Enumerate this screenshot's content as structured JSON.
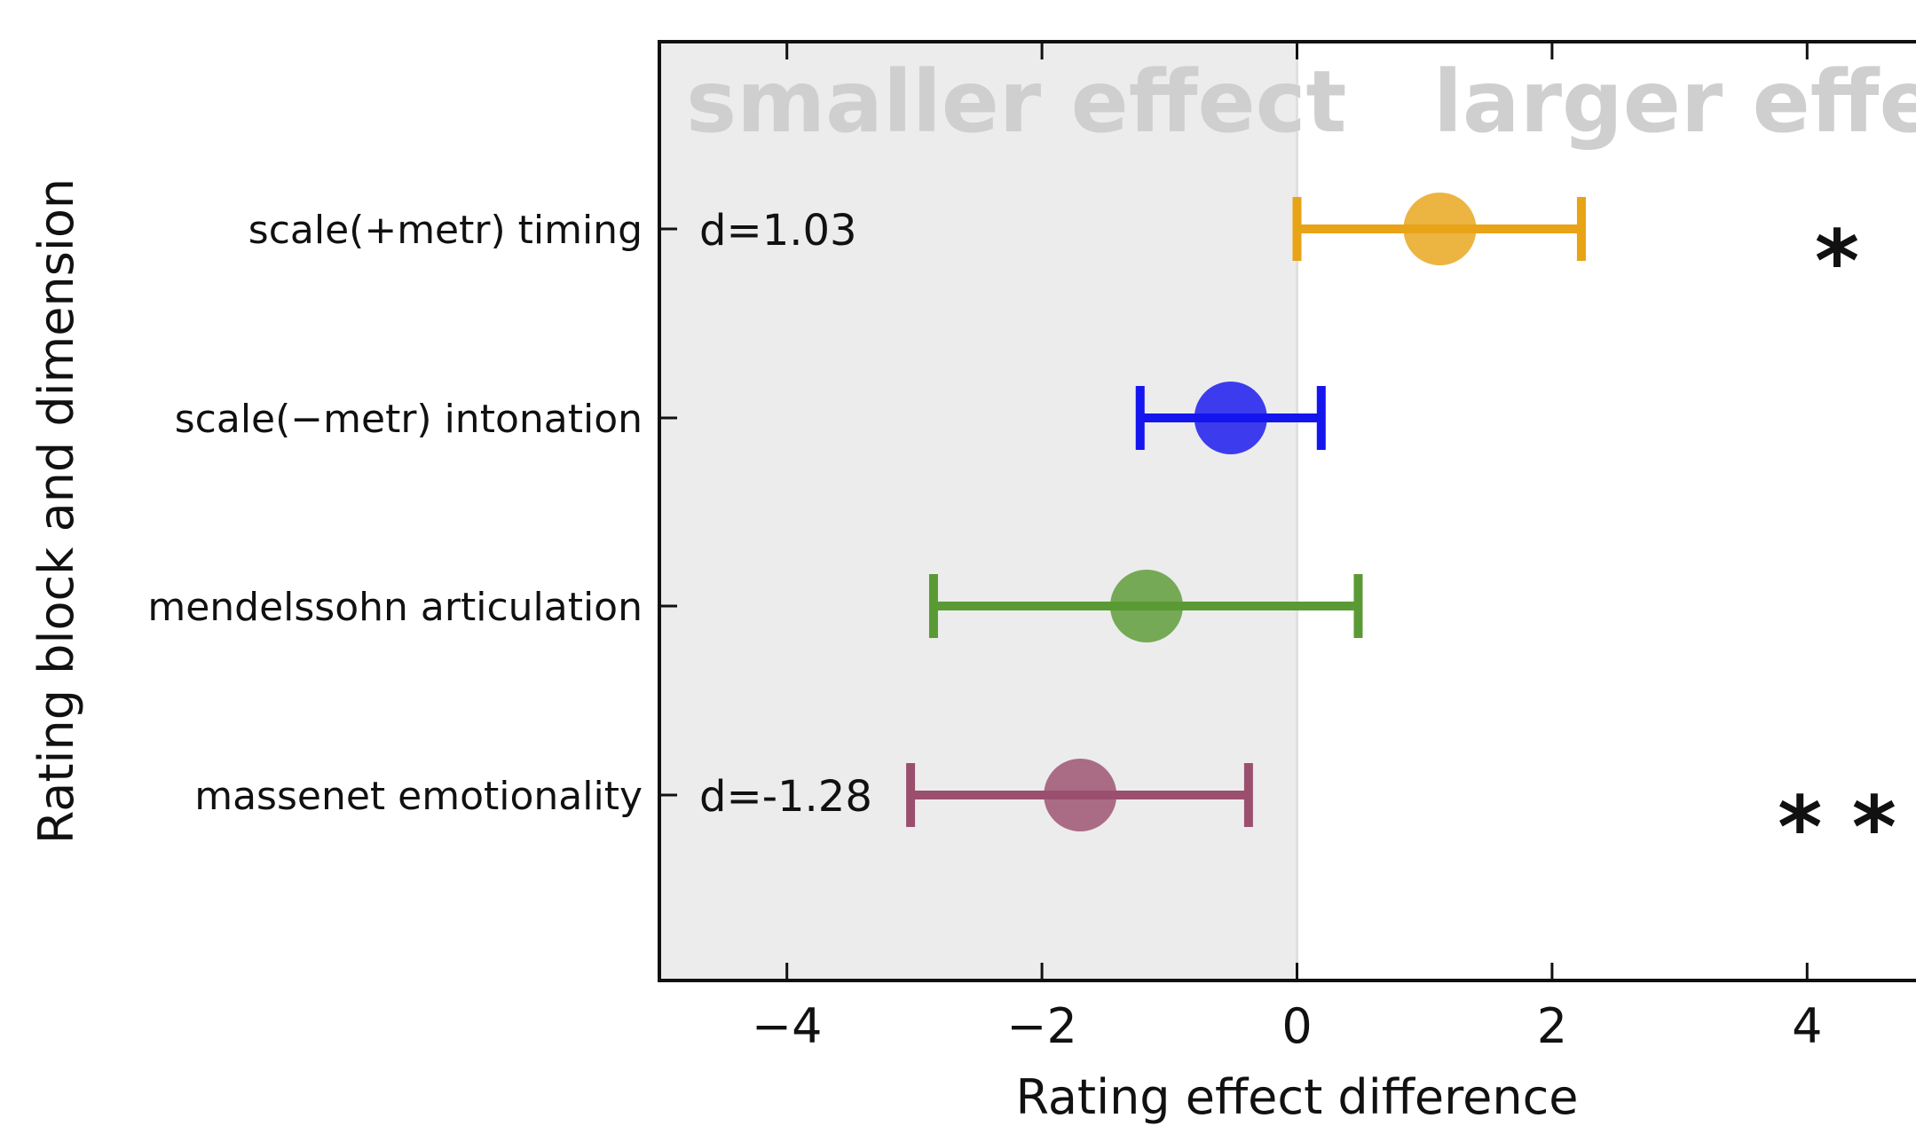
{
  "chart_data": {
    "type": "scatter",
    "subtype": "forest-plot-with-error-bars",
    "xlabel": "Rating effect difference",
    "ylabel": "Rating block and dimension",
    "xlim": [
      -5,
      5
    ],
    "x_ticks": [
      -4,
      -2,
      0,
      2,
      4
    ],
    "x_tick_labels": [
      "−4",
      "−2",
      "0",
      "2",
      "4"
    ],
    "regions": [
      {
        "label": "smaller effect",
        "x_range": [
          -5,
          0
        ],
        "color": "#ececec"
      },
      {
        "label": "larger effect",
        "x_range": [
          0,
          5
        ],
        "color": "#ffffff"
      }
    ],
    "series": [
      {
        "category": "scale(+metr) timing",
        "estimate": 1.12,
        "ci_low": 0.0,
        "ci_high": 2.23,
        "color": "#e8a317",
        "effect_size_label": "d=1.03",
        "significance": "*"
      },
      {
        "category": "scale(−metr) intonation",
        "estimate": -0.52,
        "ci_low": -1.23,
        "ci_high": 0.19,
        "color": "#1515ee",
        "effect_size_label": "",
        "significance": ""
      },
      {
        "category": "mendelssohn articulation",
        "estimate": -1.18,
        "ci_low": -2.85,
        "ci_high": 0.48,
        "color": "#5a9a35",
        "effect_size_label": "",
        "significance": ""
      },
      {
        "category": "massenet emotionality",
        "estimate": -1.7,
        "ci_low": -3.03,
        "ci_high": -0.38,
        "color": "#9b4f6e",
        "effect_size_label": "d=-1.28",
        "significance": "* *"
      }
    ],
    "grid": false
  }
}
